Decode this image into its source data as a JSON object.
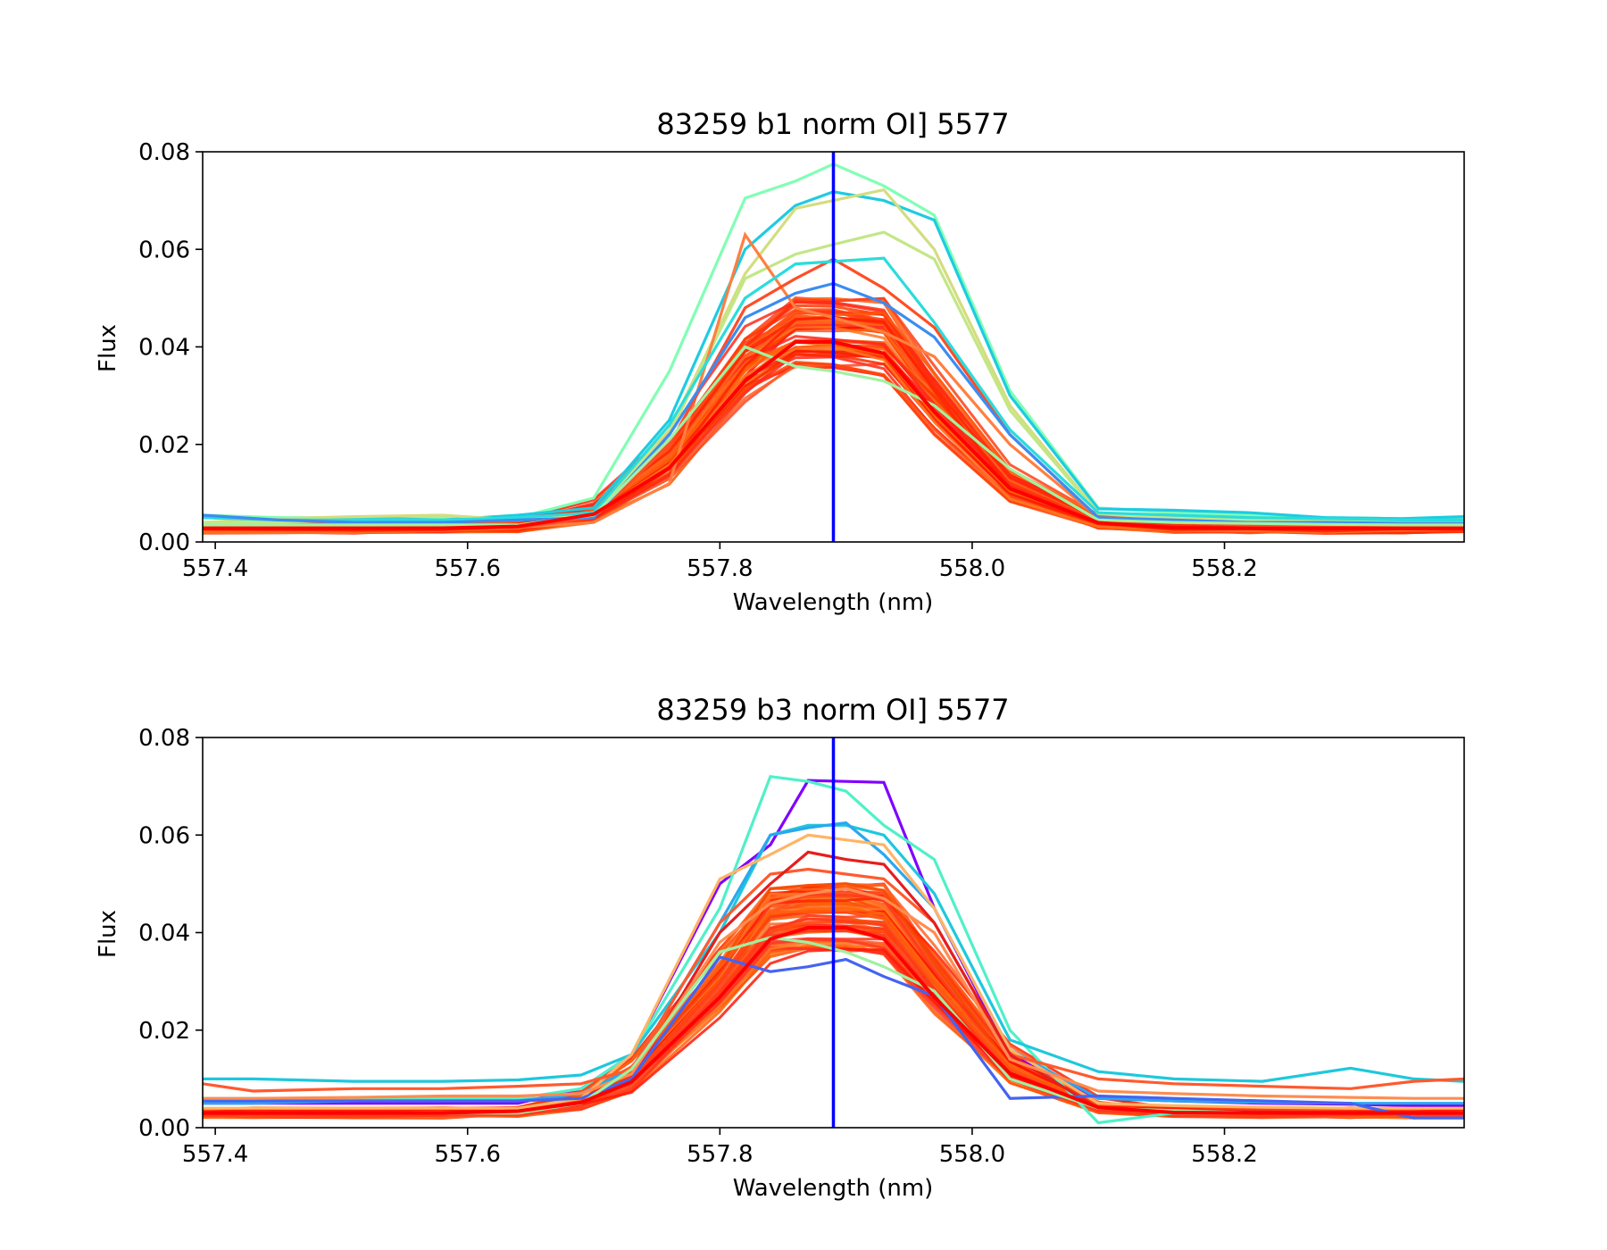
{
  "chart_data": [
    {
      "type": "line",
      "title": "83259 b1 norm OI] 5577",
      "xlabel": "Wavelength (nm)",
      "ylabel": "Flux",
      "xlim": [
        557.39,
        558.39
      ],
      "ylim": [
        0,
        0.08
      ],
      "xticks": [
        557.4,
        557.6,
        557.8,
        558.0,
        558.2
      ],
      "xtick_labels": [
        "557.4",
        "557.6",
        "557.8",
        "558.0",
        "558.2"
      ],
      "yticks": [
        0,
        0.02,
        0.04,
        0.06,
        0.08
      ],
      "ytick_labels": [
        "0.00",
        "0.02",
        "0.04",
        "0.06",
        "0.08"
      ],
      "grid": false,
      "legend": false,
      "vline": {
        "x": 557.89,
        "color": "#0000ff"
      },
      "x": [
        557.39,
        557.45,
        557.51,
        557.58,
        557.64,
        557.7,
        557.76,
        557.82,
        557.86,
        557.89,
        557.93,
        557.97,
        558.03,
        558.1,
        558.16,
        558.22,
        558.28,
        558.34,
        558.39
      ],
      "baseline": 0.0028,
      "series": [
        {
          "color": "#80ffb4",
          "values": [
            0.0055,
            0.005,
            0.005,
            0.005,
            0.005,
            0.009,
            0.035,
            0.0705,
            0.074,
            0.0775,
            0.073,
            0.067,
            0.031,
            0.007,
            0.006,
            0.0055,
            0.005,
            0.0048,
            0.0048
          ]
        },
        {
          "color": "#1ecbe1",
          "values": [
            0.005,
            0.0045,
            0.005,
            0.0045,
            0.0055,
            0.007,
            0.025,
            0.06,
            0.069,
            0.0718,
            0.07,
            0.066,
            0.03,
            0.0068,
            0.0065,
            0.006,
            0.005,
            0.0048,
            0.0052
          ]
        },
        {
          "color": "#d4dd80",
          "values": [
            0.004,
            0.0048,
            0.0052,
            0.0055,
            0.0045,
            0.006,
            0.023,
            0.055,
            0.0684,
            0.07,
            0.0722,
            0.06,
            0.028,
            0.006,
            0.005,
            0.0048,
            0.0045,
            0.0042,
            0.004
          ]
        },
        {
          "color": "#c2e786",
          "values": [
            0.004,
            0.004,
            0.0045,
            0.0045,
            0.0045,
            0.006,
            0.022,
            0.054,
            0.059,
            0.061,
            0.0635,
            0.058,
            0.027,
            0.0058,
            0.0048,
            0.0045,
            0.0042,
            0.004,
            0.004
          ]
        },
        {
          "color": "#ff7f40",
          "values": [
            0.003,
            0.003,
            0.003,
            0.003,
            0.003,
            0.004,
            0.012,
            0.063,
            0.048,
            0.046,
            0.043,
            0.038,
            0.02,
            0.005,
            0.004,
            0.0035,
            0.0032,
            0.003,
            0.003
          ]
        },
        {
          "color": "#ff4d27",
          "values": [
            0.003,
            0.003,
            0.003,
            0.003,
            0.003,
            0.005,
            0.02,
            0.048,
            0.054,
            0.058,
            0.052,
            0.044,
            0.022,
            0.005,
            0.004,
            0.0035,
            0.0032,
            0.003,
            0.003
          ]
        },
        {
          "color": "#2adcdc",
          "values": [
            0.005,
            0.0045,
            0.0045,
            0.0045,
            0.005,
            0.006,
            0.024,
            0.05,
            0.057,
            0.0575,
            0.0582,
            0.045,
            0.023,
            0.006,
            0.0055,
            0.005,
            0.0048,
            0.0045,
            0.0045
          ]
        },
        {
          "color": "#3c8cf2",
          "values": [
            0.0055,
            0.0045,
            0.004,
            0.004,
            0.0045,
            0.005,
            0.022,
            0.046,
            0.051,
            0.053,
            0.049,
            0.042,
            0.022,
            0.005,
            0.0045,
            0.004,
            0.004,
            0.0038,
            0.0038
          ]
        },
        {
          "color": "#a0f2a0",
          "values": [
            0.0035,
            0.0035,
            0.0035,
            0.0035,
            0.0035,
            0.0055,
            0.021,
            0.04,
            0.036,
            0.035,
            0.033,
            0.028,
            0.015,
            0.0045,
            0.004,
            0.0038,
            0.0036,
            0.0035,
            0.0035
          ]
        }
      ],
      "band": {
        "color": "#ff2a15",
        "count": 60,
        "peak_min": 0.036,
        "peak_max": 0.05
      }
    },
    {
      "type": "line",
      "title": "83259 b3 norm OI] 5577",
      "xlabel": "Wavelength (nm)",
      "ylabel": "Flux",
      "xlim": [
        557.39,
        558.39
      ],
      "ylim": [
        0,
        0.08
      ],
      "xticks": [
        557.4,
        557.6,
        557.8,
        558.0,
        558.2
      ],
      "xtick_labels": [
        "557.4",
        "557.6",
        "557.8",
        "558.0",
        "558.2"
      ],
      "yticks": [
        0,
        0.02,
        0.04,
        0.06,
        0.08
      ],
      "ytick_labels": [
        "0.00",
        "0.02",
        "0.04",
        "0.06",
        "0.08"
      ],
      "grid": false,
      "legend": false,
      "vline": {
        "x": 557.89,
        "color": "#0000ff"
      },
      "x": [
        557.39,
        557.43,
        557.51,
        557.58,
        557.64,
        557.69,
        557.73,
        557.8,
        557.84,
        557.87,
        557.9,
        557.93,
        557.97,
        558.03,
        558.1,
        558.16,
        558.23,
        558.3,
        558.35,
        558.39
      ],
      "baseline": 0.003,
      "series": [
        {
          "color": "#8000ff",
          "values": [
            0.005,
            0.005,
            0.005,
            0.005,
            0.005,
            0.008,
            0.015,
            0.05,
            0.058,
            0.0712,
            0.071,
            0.0708,
            0.045,
            0.015,
            0.006,
            0.0055,
            0.005,
            0.0048,
            0.0045,
            0.0045
          ]
        },
        {
          "color": "#50f0c8",
          "values": [
            0.006,
            0.006,
            0.006,
            0.006,
            0.006,
            0.008,
            0.015,
            0.045,
            0.072,
            0.071,
            0.069,
            0.062,
            0.055,
            0.02,
            0.001,
            0.003,
            0.003,
            0.003,
            0.003,
            0.003
          ]
        },
        {
          "color": "#1ec8dc",
          "values": [
            0.01,
            0.01,
            0.0095,
            0.0095,
            0.0098,
            0.0108,
            0.015,
            0.04,
            0.06,
            0.062,
            0.062,
            0.06,
            0.048,
            0.018,
            0.0115,
            0.01,
            0.0095,
            0.0122,
            0.01,
            0.0095
          ]
        },
        {
          "color": "#2aa8ee",
          "values": [
            0.005,
            0.005,
            0.0055,
            0.0055,
            0.0055,
            0.007,
            0.012,
            0.042,
            0.06,
            0.0615,
            0.0625,
            0.056,
            0.045,
            0.016,
            0.006,
            0.0055,
            0.0052,
            0.005,
            0.005,
            0.005
          ]
        },
        {
          "color": "#ffb464",
          "values": [
            0.004,
            0.004,
            0.004,
            0.004,
            0.004,
            0.006,
            0.015,
            0.051,
            0.056,
            0.06,
            0.059,
            0.058,
            0.045,
            0.016,
            0.005,
            0.0045,
            0.0042,
            0.004,
            0.004,
            0.004
          ]
        },
        {
          "color": "#ff5a2f",
          "values": [
            0.009,
            0.0075,
            0.008,
            0.008,
            0.0085,
            0.009,
            0.012,
            0.042,
            0.052,
            0.053,
            0.052,
            0.051,
            0.042,
            0.015,
            0.01,
            0.009,
            0.0085,
            0.008,
            0.0095,
            0.01
          ]
        },
        {
          "color": "#e61e1e",
          "values": [
            0.003,
            0.003,
            0.003,
            0.003,
            0.003,
            0.005,
            0.01,
            0.04,
            0.05,
            0.0565,
            0.055,
            0.054,
            0.042,
            0.015,
            0.004,
            0.0035,
            0.0032,
            0.003,
            0.003,
            0.003
          ]
        },
        {
          "color": "#4464f0",
          "values": [
            0.0055,
            0.0055,
            0.0055,
            0.0055,
            0.0055,
            0.006,
            0.01,
            0.035,
            0.032,
            0.033,
            0.0345,
            0.031,
            0.027,
            0.006,
            0.0065,
            0.006,
            0.0055,
            0.005,
            0.002,
            0.002
          ]
        },
        {
          "color": "#ff8c50",
          "values": [
            0.006,
            0.006,
            0.0062,
            0.0065,
            0.0065,
            0.007,
            0.011,
            0.038,
            0.046,
            0.048,
            0.049,
            0.047,
            0.04,
            0.014,
            0.0075,
            0.007,
            0.0065,
            0.0062,
            0.006,
            0.006
          ]
        },
        {
          "color": "#a0f0a0",
          "values": [
            0.003,
            0.003,
            0.003,
            0.003,
            0.003,
            0.005,
            0.012,
            0.036,
            0.039,
            0.038,
            0.036,
            0.033,
            0.028,
            0.01,
            0.004,
            0.0035,
            0.003,
            0.003,
            0.003,
            0.003
          ]
        }
      ],
      "band": {
        "color": "#ff2a15",
        "count": 60,
        "peak_min": 0.036,
        "peak_max": 0.05
      }
    }
  ]
}
